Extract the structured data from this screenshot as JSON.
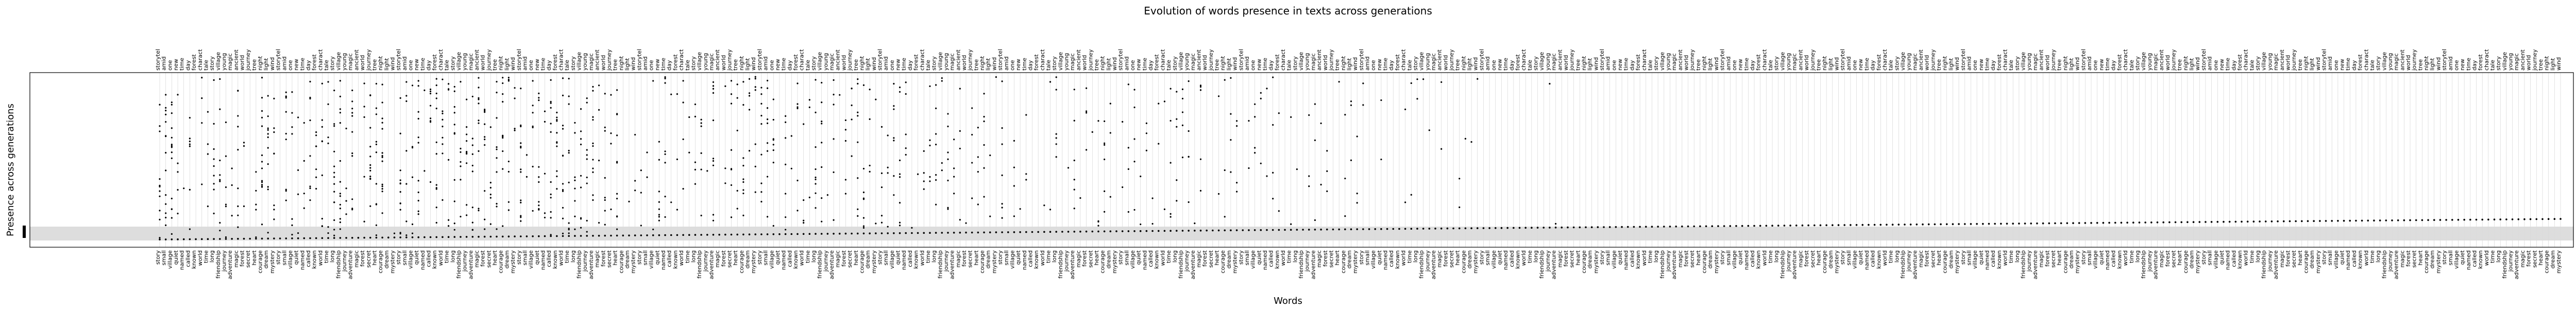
{
  "chart_data": {
    "type": "scatter",
    "title": "Evolution of words presence in texts across generations",
    "xlabel": "Words",
    "ylabel": "Presence across generations",
    "ylim": [
      0,
      6
    ],
    "grid": true,
    "top_words_sample": [
      "storytel",
      "amid",
      "one",
      "new",
      "time",
      "day",
      "forest",
      "charact",
      "tale",
      "story",
      "village",
      "young",
      "magic",
      "ancient",
      "world",
      "journey",
      "tree",
      "night",
      "light",
      "wind"
    ],
    "bottom_words_sample": [
      "story",
      "small",
      "village",
      "quiet",
      "named",
      "called",
      "known",
      "world",
      "time",
      "long",
      "friendship",
      "journey",
      "adventure",
      "magic",
      "forest",
      "secret",
      "heart",
      "courage",
      "dream",
      "mystery"
    ],
    "words_count": 400
  }
}
